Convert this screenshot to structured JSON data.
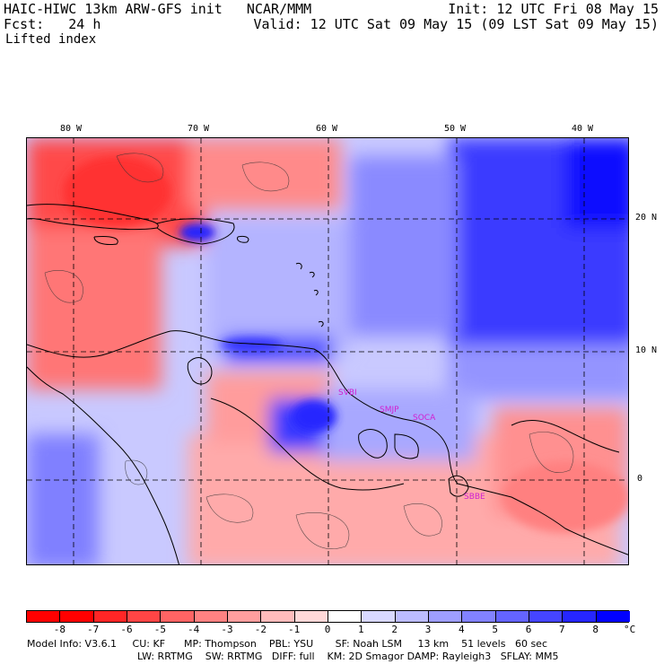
{
  "header": {
    "line1_left": "HAIC-HIWC 13km ARW-GFS init   NCAR/MMM",
    "line1_right": "Init: 12 UTC Fri 08 May 15",
    "line2_left": "Fcst:   24 h",
    "line2_right": "Valid: 12 UTC Sat 09 May 15 (09 LST Sat 09 May 15)",
    "field_name": "Lifted index"
  },
  "axes": {
    "lon_labels": [
      "80 W",
      "70 W",
      "60 W",
      "50 W",
      "40 W"
    ],
    "lat_labels": [
      "20 N",
      "10 N",
      "0"
    ]
  },
  "stations": [
    "SVBI",
    "SMJP",
    "SOCA",
    "SBBE"
  ],
  "colorbar": {
    "labels": [
      "-8",
      "-7",
      "-6",
      "-5",
      "-4",
      "-3",
      "-2",
      "-1",
      "0",
      "1",
      "2",
      "3",
      "4",
      "5",
      "6",
      "7",
      "8"
    ],
    "unit": "°C",
    "colors": [
      "#ff0000",
      "#ff2626",
      "#ff4545",
      "#ff6464",
      "#ff8282",
      "#ff9e9e",
      "#ffbcbc",
      "#ffd8d8",
      "#ffffff",
      "#d8d8ff",
      "#bcbcff",
      "#9e9eff",
      "#8282ff",
      "#6464ff",
      "#4545ff",
      "#2626ff",
      "#0000ff"
    ]
  },
  "model_info": {
    "line1": "Model Info: V3.6.1     CU: KF      MP: Thompson    PBL: YSU       SF: Noah LSM     13 km    51 levels   60 sec",
    "line2": "LW: RRTMG    SW: RRTMG   DIFF: full    KM: 2D Smagor DAMP: Rayleigh3   SFLAY: MM5"
  }
}
